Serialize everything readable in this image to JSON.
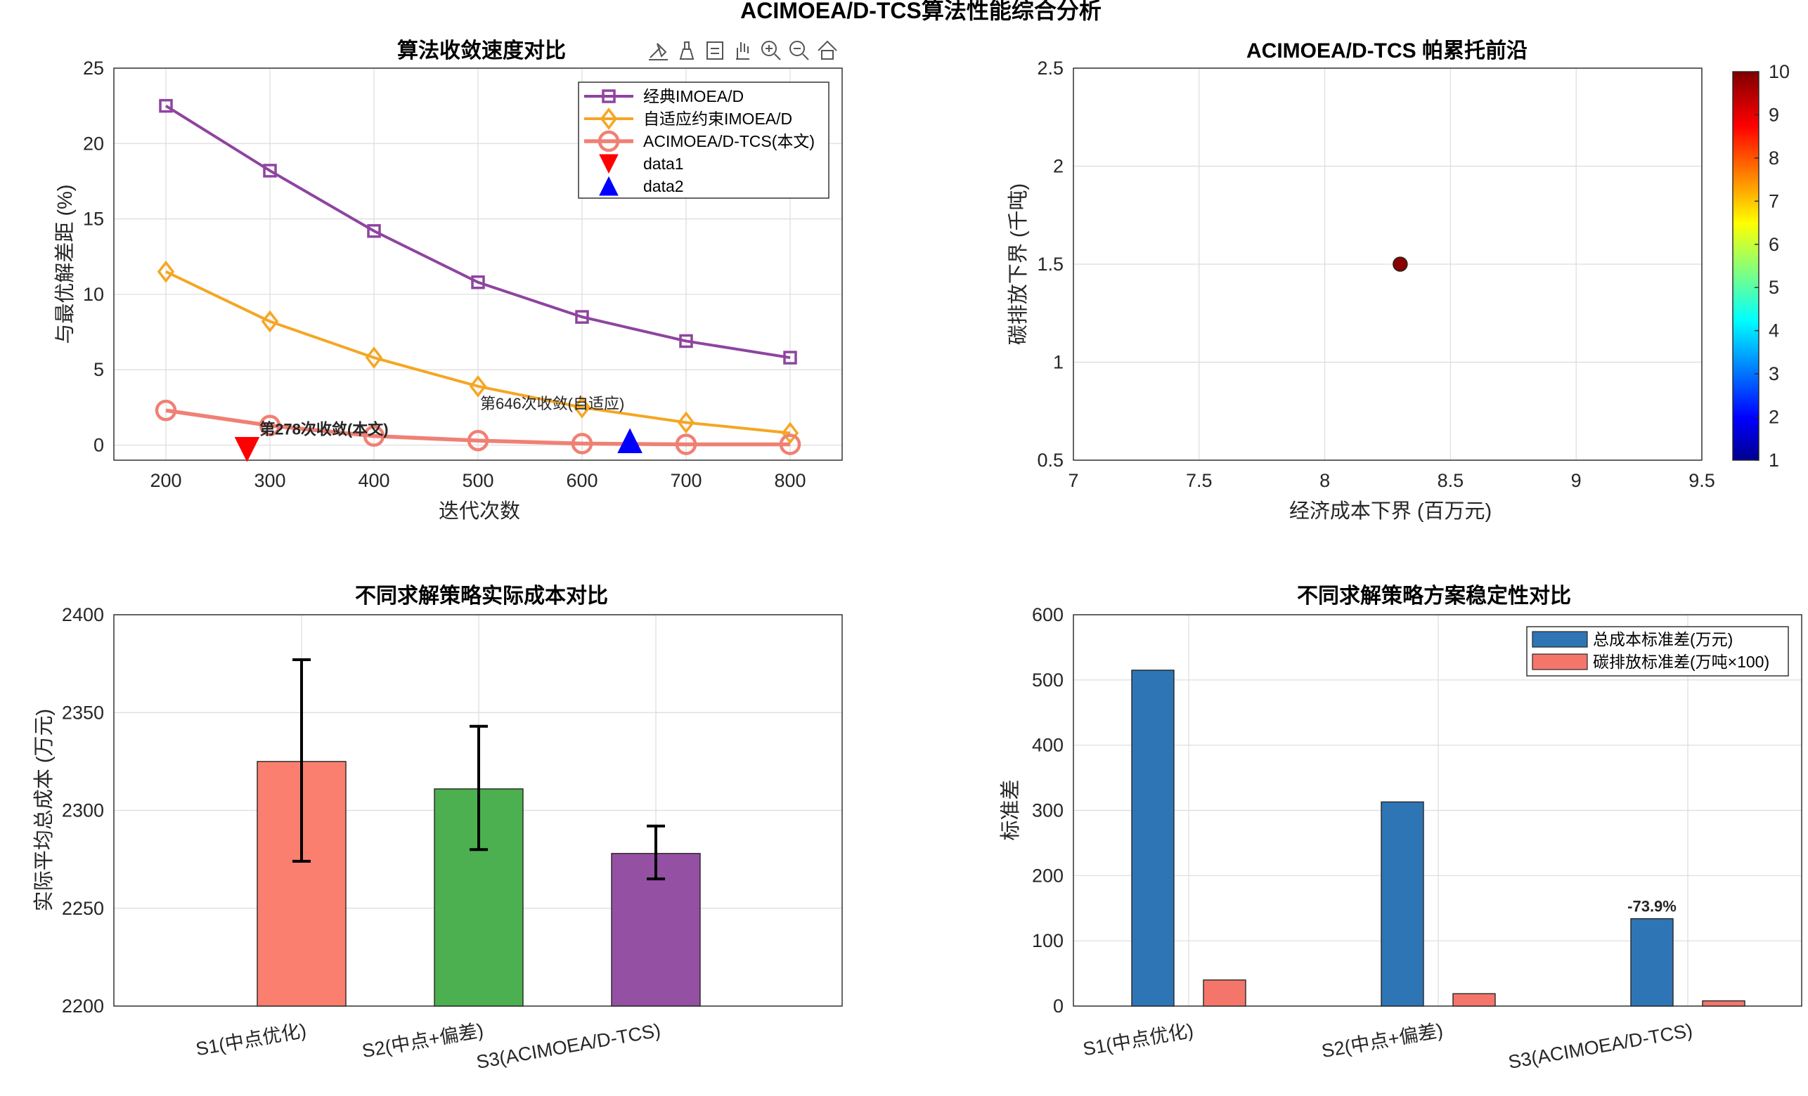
{
  "suptitle": "ACIMOEA/D-TCS算法性能综合分析",
  "colors": {
    "classic": "#8E44A0",
    "adaptive": "#F5A623",
    "proposed": "#F08074",
    "marker1": "#FF0000",
    "marker2": "#0000FF",
    "bar_s1": "#FA7F6F",
    "bar_s2": "#4CAF50",
    "bar_s3": "#9450A3",
    "std_cost": "#2E75B6",
    "std_carbon": "#F4766B",
    "scatter_point": "#8B0000",
    "annotation_red": "#DD0000",
    "annotation_orange": "#F5A623"
  },
  "toolbar_icons": [
    "brush-icon",
    "data-tips-icon",
    "legend-toggle-icon",
    "pan-icon",
    "zoom-in-icon",
    "zoom-out-icon",
    "home-icon"
  ],
  "chart_data": [
    {
      "type": "line",
      "title": "算法收敛速度对比",
      "xlabel": "迭代次数",
      "ylabel": "与最优解差距 (%)",
      "x": [
        200,
        300,
        400,
        500,
        600,
        700,
        800
      ],
      "xticks": [
        "200",
        "300",
        "400",
        "500",
        "600",
        "700",
        "800"
      ],
      "yticks": [
        "0",
        "5",
        "10",
        "15",
        "20",
        "25"
      ],
      "xlim": [
        150,
        850
      ],
      "ylim": [
        -1,
        25
      ],
      "grid": true,
      "legend_position": "top-right",
      "series": [
        {
          "name": "经典IMOEA/D",
          "marker": "square",
          "values": [
            22.5,
            18.2,
            14.2,
            10.8,
            8.5,
            6.9,
            5.8
          ]
        },
        {
          "name": "自适应约束IMOEA/D",
          "marker": "diamond",
          "values": [
            11.5,
            8.2,
            5.8,
            3.9,
            2.5,
            1.5,
            0.8
          ]
        },
        {
          "name": "ACIMOEA/D-TCS(本文)",
          "marker": "circle",
          "values": [
            2.3,
            1.3,
            0.6,
            0.3,
            0.1,
            0.05,
            0.05
          ]
        },
        {
          "name": "data1",
          "marker": "triangle-down",
          "x": [
            278
          ],
          "values": [
            0
          ]
        },
        {
          "name": "data2",
          "marker": "triangle-up",
          "x": [
            646
          ],
          "values": [
            0
          ]
        }
      ],
      "annotations": [
        {
          "text": "第278次收敛(本文)",
          "x": 290,
          "y": 0.7
        },
        {
          "text": "第646次收敛(自适应)",
          "x": 502,
          "y": 2.4
        }
      ]
    },
    {
      "type": "scatter",
      "title": "ACIMOEA/D-TCS 帕累托前沿",
      "xlabel": "经济成本下界 (百万元)",
      "ylabel": "碳排放下界 (千吨)",
      "xlim": [
        7,
        9.5
      ],
      "ylim": [
        0.5,
        2.5
      ],
      "xticks": [
        "7",
        "7.5",
        "8",
        "8.5",
        "9",
        "9.5"
      ],
      "yticks": [
        "0.5",
        "1",
        "1.5",
        "2",
        "2.5"
      ],
      "grid": true,
      "points": [
        {
          "x": 8.3,
          "y": 1.5,
          "c": 10
        }
      ],
      "colorbar": {
        "range": [
          1,
          10
        ],
        "ticks": [
          "1",
          "2",
          "3",
          "4",
          "5",
          "6",
          "7",
          "8",
          "9",
          "10"
        ],
        "colormap": "jet"
      }
    },
    {
      "type": "bar",
      "title": "不同求解策略实际成本对比",
      "xlabel": "",
      "ylabel": "实际平均总成本 (万元)",
      "categories": [
        "S1(中点优化)",
        "S2(中点+偏差)",
        "S3(ACIMOEA/D-TCS)"
      ],
      "values": [
        2325,
        2311,
        2278
      ],
      "error_low": [
        2274,
        2280,
        2265
      ],
      "error_high": [
        2377,
        2343,
        2292
      ],
      "ylim": [
        2200,
        2400
      ],
      "yticks": [
        "2200",
        "2250",
        "2300",
        "2350",
        "2400"
      ],
      "grid": true
    },
    {
      "type": "bar",
      "title": "不同求解策略方案稳定性对比",
      "xlabel": "",
      "ylabel": "标准差",
      "categories": [
        "S1(中点优化)",
        "S2(中点+偏差)",
        "S3(ACIMOEA/D-TCS)"
      ],
      "series": [
        {
          "name": "总成本标准差(万元)",
          "values": [
            515,
            313,
            134
          ]
        },
        {
          "name": "碳排放标准差(万吨×100)",
          "values": [
            40,
            19,
            8
          ]
        }
      ],
      "ylim": [
        0,
        600
      ],
      "yticks": [
        "0",
        "100",
        "200",
        "300",
        "400",
        "500",
        "600"
      ],
      "grid": true,
      "legend_position": "top-right",
      "annotations": [
        {
          "text": "-73.9%",
          "category": "S3(ACIMOEA/D-TCS)",
          "y": 145
        }
      ]
    }
  ]
}
